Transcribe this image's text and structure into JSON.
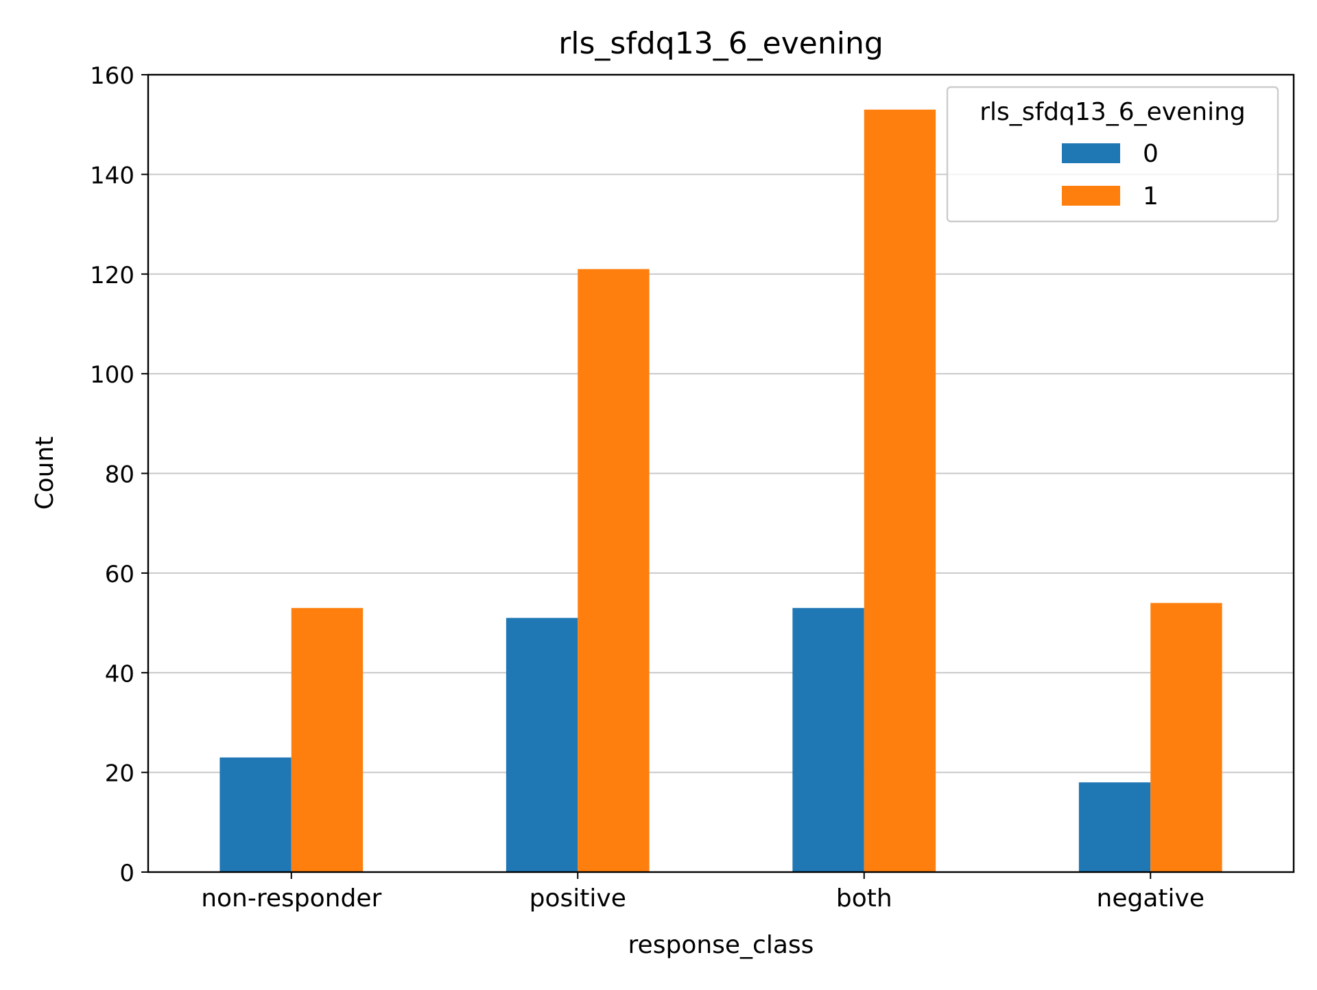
{
  "chart_data": {
    "type": "bar",
    "title": "rls_sfdq13_6_evening",
    "xlabel": "response_class",
    "ylabel": "Count",
    "categories": [
      "non-responder",
      "positive",
      "both",
      "negative"
    ],
    "series": [
      {
        "name": "0",
        "values": [
          23,
          51,
          53,
          18
        ],
        "color": "#1f77b4"
      },
      {
        "name": "1",
        "values": [
          53,
          121,
          153,
          54
        ],
        "color": "#ff7f0e"
      }
    ],
    "ylim": [
      0,
      160
    ],
    "yticks": [
      "0",
      "20",
      "40",
      "60",
      "80",
      "100",
      "120",
      "140",
      "160"
    ],
    "grid": "y",
    "legend": {
      "title": "rls_sfdq13_6_evening",
      "placement": "top-right"
    }
  }
}
